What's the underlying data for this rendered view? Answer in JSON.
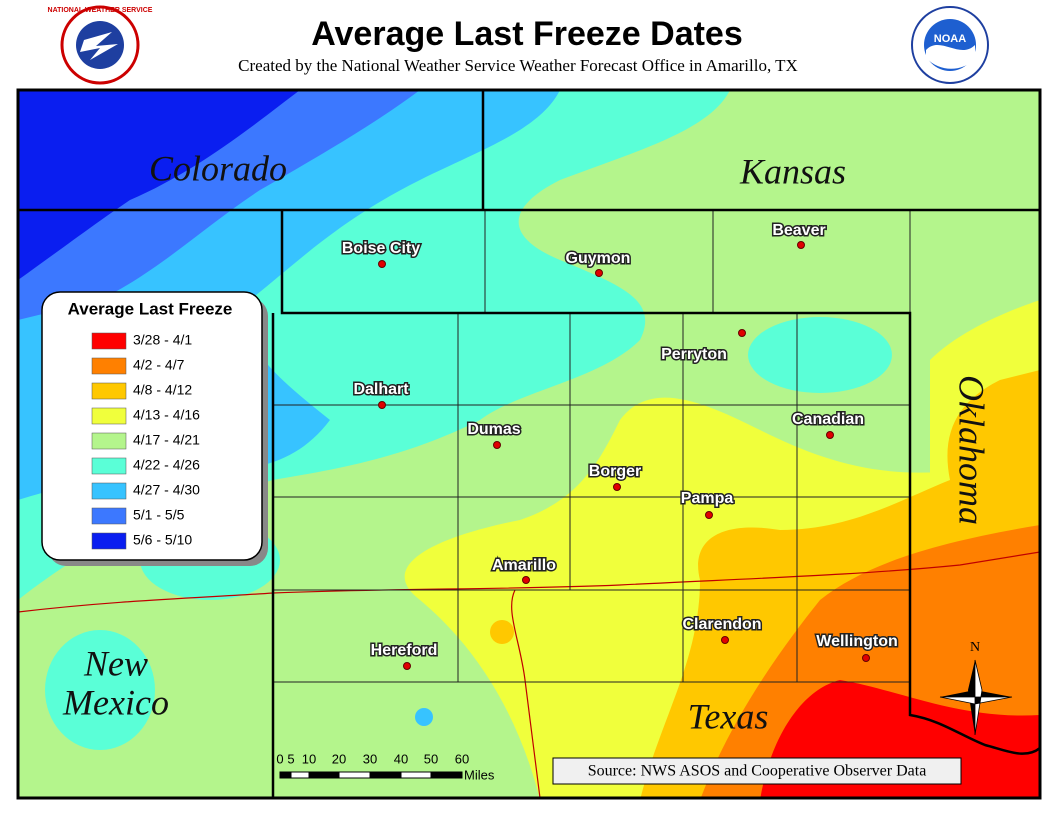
{
  "header": {
    "title": "Average Last Freeze Dates",
    "subtitle": "Created by the National Weather Service Weather Forecast Office in Amarillo, TX",
    "left_logo_text": "NATIONAL WEATHER SERVICE",
    "right_logo_text": "NOAA"
  },
  "states": {
    "colorado": "Colorado",
    "kansas": "Kansas",
    "oklahoma": "Oklahoma",
    "new_mexico": [
      "New",
      "Mexico"
    ],
    "texas": "Texas"
  },
  "cities": [
    "Boise City",
    "Guymon",
    "Beaver",
    "Perryton",
    "Dalhart",
    "Dumas",
    "Canadian",
    "Borger",
    "Pampa",
    "Amarillo",
    "Clarendon",
    "Hereford",
    "Wellington"
  ],
  "legend": {
    "title": "Average Last Freeze",
    "items": [
      {
        "label": "3/28 - 4/1",
        "color": "#ff0000"
      },
      {
        "label": "4/2 - 4/7",
        "color": "#ff8000"
      },
      {
        "label": "4/8 - 4/12",
        "color": "#ffc800"
      },
      {
        "label": "4/13 - 4/16",
        "color": "#f0ff3c"
      },
      {
        "label": "4/17 - 4/21",
        "color": "#b4f58c"
      },
      {
        "label": "4/22 - 4/26",
        "color": "#5affd7"
      },
      {
        "label": "4/27 - 4/30",
        "color": "#37c3ff"
      },
      {
        "label": "5/1 - 5/5",
        "color": "#3c78ff"
      },
      {
        "label": "5/6 - 5/10",
        "color": "#0a1ef0"
      }
    ]
  },
  "scale_bar": {
    "ticks": [
      "0",
      "5",
      "10",
      "20",
      "30",
      "40",
      "50",
      "60"
    ],
    "unit": "Miles"
  },
  "compass": "N",
  "source": "Source:  NWS ASOS and Cooperative Observer Data"
}
